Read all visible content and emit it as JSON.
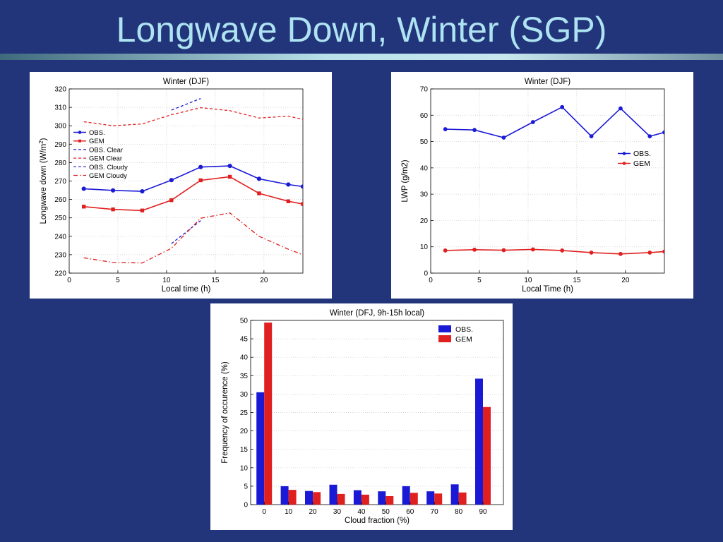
{
  "slide": {
    "title": "Longwave Down, Winter (SGP)"
  },
  "colors": {
    "background": "#23357a",
    "title": "#aee3f2",
    "obs": "#1a1ad6",
    "gem": "#e02020"
  },
  "chart_data": [
    {
      "id": "lwd",
      "type": "line",
      "title": "Winter (DJF)",
      "xlabel": "Local time (h)",
      "ylabel": "Longwave down (W/m",
      "ylabel_sup": "2",
      "ylabel_end": ")",
      "xlim": [
        0,
        24
      ],
      "ylim": [
        220,
        320
      ],
      "xticks": [
        0,
        5,
        10,
        15,
        20
      ],
      "yticks": [
        220,
        230,
        240,
        250,
        260,
        270,
        280,
        290,
        300,
        310,
        320
      ],
      "grid": true,
      "legend_position": "upper-left",
      "series": [
        {
          "name": "OBS.",
          "color": "#1a1ad6",
          "style": "solid",
          "marker": "circle",
          "x": [
            1.5,
            4.5,
            7.5,
            10.5,
            13.5,
            16.5,
            19.5,
            22.5,
            24
          ],
          "y": [
            265.8,
            264.9,
            264.4,
            270.5,
            277.6,
            278.2,
            271.2,
            268.1,
            267.0
          ]
        },
        {
          "name": "GEM",
          "color": "#e02020",
          "style": "solid",
          "marker": "square",
          "x": [
            1.5,
            4.5,
            7.5,
            10.5,
            13.5,
            16.5,
            19.5,
            22.5,
            24
          ],
          "y": [
            256.1,
            254.6,
            254.0,
            259.6,
            270.4,
            272.3,
            263.3,
            259.0,
            257.5
          ]
        },
        {
          "name": "OBS. Clear",
          "color": "#1a1ad6",
          "style": "dashed",
          "marker": "none",
          "x": [
            10.5,
            13.5
          ],
          "y": [
            308.5,
            314.8
          ]
        },
        {
          "name": "GEM Clear",
          "color": "#e02020",
          "style": "dashed",
          "marker": "none",
          "x": [
            1.5,
            4.5,
            7.5,
            10.5,
            13.5,
            16.5,
            19.5,
            22.5,
            24
          ],
          "y": [
            302.2,
            300.0,
            301.0,
            306.0,
            309.8,
            308.2,
            304.2,
            305.2,
            303.5
          ]
        },
        {
          "name": "OBS. Cloudy",
          "color": "#1a1ad6",
          "style": "dashed",
          "marker": "none",
          "x": [
            10.5,
            13.5
          ],
          "y": [
            236.0,
            248.5
          ]
        },
        {
          "name": "GEM Cloudy",
          "color": "#e02020",
          "style": "dashdot",
          "marker": "none",
          "x": [
            1.5,
            4.5,
            7.5,
            10.5,
            13.5,
            16.5,
            19.5,
            22.5,
            24
          ],
          "y": [
            228.3,
            225.8,
            225.5,
            233.5,
            249.8,
            252.7,
            240.0,
            233.0,
            230.0
          ]
        }
      ]
    },
    {
      "id": "lwp",
      "type": "line",
      "title": "Winter (DJF)",
      "xlabel": "Local Time (h)",
      "ylabel": "LWP (g/m2)",
      "xlim": [
        0,
        24
      ],
      "ylim": [
        0,
        70
      ],
      "xticks": [
        0,
        5,
        10,
        15,
        20
      ],
      "yticks": [
        0,
        10,
        20,
        30,
        40,
        50,
        60,
        70
      ],
      "grid": true,
      "legend_position": "right",
      "series": [
        {
          "name": "OBS.",
          "color": "#1a1ad6",
          "style": "solid",
          "marker": "dot",
          "x": [
            1.5,
            4.5,
            7.5,
            10.5,
            13.5,
            16.5,
            19.5,
            22.5,
            24
          ],
          "y": [
            54.7,
            54.4,
            51.5,
            57.4,
            63.1,
            52.0,
            62.6,
            52.0,
            53.5
          ]
        },
        {
          "name": "GEM",
          "color": "#e02020",
          "style": "solid",
          "marker": "dot",
          "x": [
            1.5,
            4.5,
            7.5,
            10.5,
            13.5,
            16.5,
            19.5,
            22.5,
            24
          ],
          "y": [
            8.6,
            8.9,
            8.7,
            9.0,
            8.6,
            7.8,
            7.3,
            7.8,
            8.2
          ]
        }
      ]
    },
    {
      "id": "cf",
      "type": "bar",
      "title": "Winter (DFJ, 9h-15h local)",
      "xlabel": "Cloud fraction (%)",
      "ylabel": "Frequency of occurence (%)",
      "categories": [
        "0",
        "10",
        "20",
        "30",
        "40",
        "50",
        "60",
        "70",
        "80",
        "90"
      ],
      "ylim": [
        0,
        50
      ],
      "yticks": [
        0,
        5,
        10,
        15,
        20,
        25,
        30,
        35,
        40,
        45,
        50
      ],
      "grid": true,
      "legend_position": "upper-right",
      "series": [
        {
          "name": "OBS.",
          "color": "#1a1ad6",
          "values": [
            30.5,
            5.0,
            3.7,
            5.4,
            3.9,
            3.6,
            5.0,
            3.6,
            5.5,
            34.2
          ]
        },
        {
          "name": "GEM",
          "color": "#e02020",
          "values": [
            49.4,
            4.0,
            3.4,
            2.9,
            2.7,
            2.3,
            3.2,
            3.0,
            3.3,
            26.5
          ]
        }
      ]
    }
  ]
}
